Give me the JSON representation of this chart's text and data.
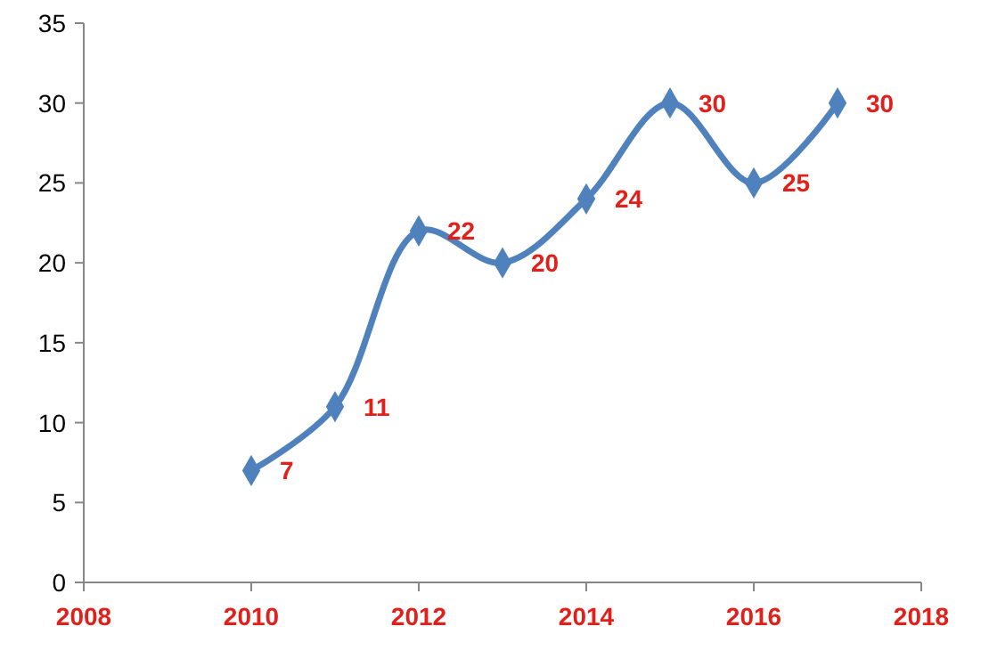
{
  "chart_data": {
    "type": "line",
    "x": [
      2010,
      2011,
      2012,
      2013,
      2014,
      2015,
      2016,
      2017
    ],
    "series": [
      {
        "color": "#4f81bd",
        "values": [
          7,
          11,
          22,
          20,
          24,
          30,
          25,
          30
        ]
      }
    ],
    "xlim": [
      2008,
      2018
    ],
    "xticks": [
      2008,
      2010,
      2012,
      2014,
      2016,
      2018
    ],
    "ylim": [
      0,
      35
    ],
    "yticks": [
      0,
      5,
      10,
      15,
      20,
      25,
      30,
      35
    ],
    "marker": "diamond",
    "line_style": "solid",
    "data_labels": true,
    "grid": false
  }
}
